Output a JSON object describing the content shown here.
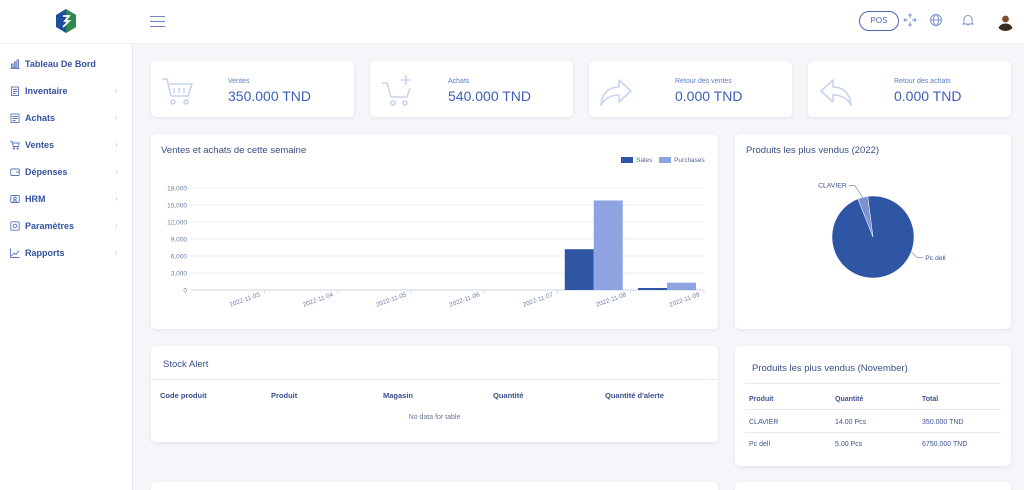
{
  "header": {
    "pos_label": "POS"
  },
  "sidebar": {
    "items": [
      {
        "label": "Tableau De Bord",
        "icon": "dashboard-icon",
        "has_chevron": false
      },
      {
        "label": "Inventaire",
        "icon": "inventory-icon",
        "has_chevron": true
      },
      {
        "label": "Achats",
        "icon": "purchases-icon",
        "has_chevron": true
      },
      {
        "label": "Ventes",
        "icon": "cart-icon",
        "has_chevron": true
      },
      {
        "label": "Dépenses",
        "icon": "wallet-icon",
        "has_chevron": true
      },
      {
        "label": "HRM",
        "icon": "users-icon",
        "has_chevron": true
      },
      {
        "label": "Paramètres",
        "icon": "settings-icon",
        "has_chevron": true
      },
      {
        "label": "Rapports",
        "icon": "report-chart-icon",
        "has_chevron": true
      }
    ]
  },
  "stats": [
    {
      "label": "Ventes",
      "value": "350.000 TND",
      "icon": "cart-icon"
    },
    {
      "label": "Achats",
      "value": "540.000 TND",
      "icon": "cart-plus-icon"
    },
    {
      "label": "Retour des ventes",
      "value": "0.000 TND",
      "icon": "forward-arrow-icon"
    },
    {
      "label": "Retour des achats",
      "value": "0.000 TND",
      "icon": "back-arrow-icon"
    }
  ],
  "weekly": {
    "title": "Ventes et achats de cette semaine"
  },
  "top_products_year": {
    "title": "Produits les plus vendus (2022)"
  },
  "stock_alert": {
    "title": "Stock Alert",
    "columns": [
      "Code produit",
      "Produit",
      "Magasin",
      "Quantité",
      "Quantité d'alerte"
    ],
    "empty_text": "No data for table"
  },
  "top_products_month": {
    "title": "Produits les plus vendus (November)",
    "columns": [
      "Produit",
      "Quantité",
      "Total"
    ],
    "rows": [
      [
        "CLAVIER",
        "14.00 Pcs",
        "350.000 TND"
      ],
      [
        "Pc dell",
        "5.00 Pcs",
        "6750.000 TND"
      ]
    ]
  },
  "colors": {
    "sales": "#2f56a4",
    "purchases": "#8fa3e0",
    "primary": "#3d5fb8"
  },
  "chart_data": [
    {
      "type": "bar",
      "categories": [
        "2022-11-03",
        "2022-11-04",
        "2022-11-05",
        "2022-11-06",
        "2022-11-07",
        "2022-11-08",
        "2022-11-09"
      ],
      "series": [
        {
          "name": "Sales",
          "values": [
            0,
            0,
            0,
            0,
            0,
            7200,
            350
          ],
          "color": "#2f56a4"
        },
        {
          "name": "Purchases",
          "values": [
            0,
            0,
            0,
            0,
            0,
            15800,
            1300
          ],
          "color": "#8fa3e0"
        }
      ],
      "yticks": [
        "0",
        "3,000",
        "6,000",
        "9,000",
        "12,000",
        "15,000",
        "18,000"
      ],
      "ylim": [
        0,
        18000
      ],
      "legend": "top-right",
      "grid": true
    },
    {
      "type": "pie",
      "categories": [
        "CLAVIER",
        "Pc dell"
      ],
      "values": [
        14,
        336
      ],
      "colors": [
        "#7c93cd",
        "#2f56a4"
      ]
    }
  ]
}
